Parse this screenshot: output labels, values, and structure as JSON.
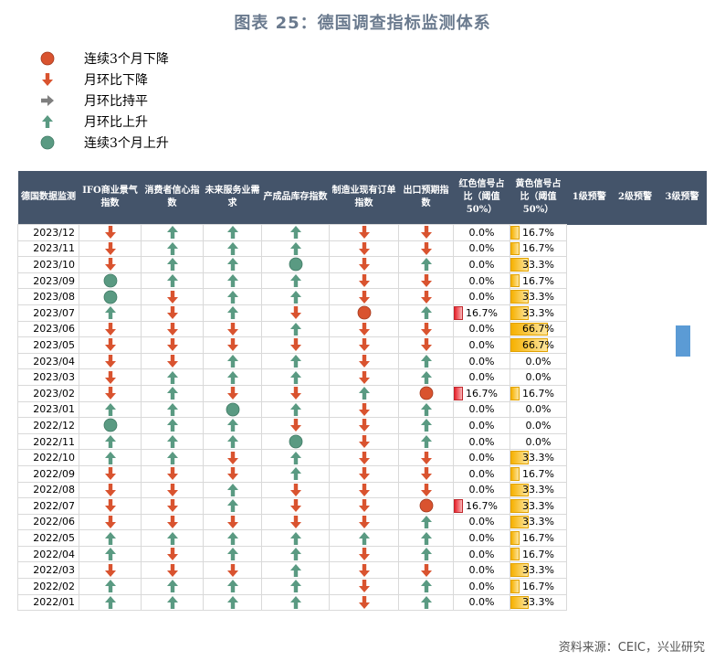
{
  "title": "图表 25：德国调查指标监测体系",
  "source": "资料来源：CEIC，兴业研究",
  "legend": [
    {
      "icon": "circle-red",
      "label": "连续3个月下降"
    },
    {
      "icon": "arrow-down-red",
      "label": "月环比下降"
    },
    {
      "icon": "arrow-right-gray",
      "label": "月环比持平"
    },
    {
      "icon": "arrow-up-green",
      "label": "月环比上升"
    },
    {
      "icon": "circle-green",
      "label": "连续3个月上升"
    }
  ],
  "colors": {
    "red": "#d9532f",
    "green": "#5a9a82",
    "gray": "#7f7f7f",
    "header": "#44546a",
    "bar_red": "#e8212b",
    "bar_yellow": "#f6b100",
    "marker": "#5b9bd5"
  },
  "chart_data": {
    "type": "table",
    "title": "图表 25：德国调查指标监测体系",
    "columns": [
      "德国数据监测",
      "IFO商业景气指数",
      "消费者信心指数",
      "未来服务业需求",
      "产成品库存指数",
      "制造业现有订单指数",
      "出口预期指数",
      "红色信号占比（阈值50%）",
      "黄色信号占比（阈值50%）",
      "1级预警",
      "2级预警",
      "3级预警"
    ],
    "rows": [
      {
        "date": "2023/12",
        "signals": [
          "D",
          "U",
          "U",
          "U",
          "D",
          "D"
        ],
        "red": "0.0%",
        "red_value": 0.0,
        "yellow": "16.7%",
        "yellow_value": 16.7
      },
      {
        "date": "2023/11",
        "signals": [
          "D",
          "U",
          "U",
          "U",
          "D",
          "D"
        ],
        "red": "0.0%",
        "red_value": 0.0,
        "yellow": "16.7%",
        "yellow_value": 16.7
      },
      {
        "date": "2023/10",
        "signals": [
          "D",
          "U",
          "U",
          "CU",
          "D",
          "U"
        ],
        "red": "0.0%",
        "red_value": 0.0,
        "yellow": "33.3%",
        "yellow_value": 33.3
      },
      {
        "date": "2023/09",
        "signals": [
          "CU",
          "U",
          "U",
          "U",
          "D",
          "D"
        ],
        "red": "0.0%",
        "red_value": 0.0,
        "yellow": "16.7%",
        "yellow_value": 16.7
      },
      {
        "date": "2023/08",
        "signals": [
          "CU",
          "D",
          "U",
          "U",
          "D",
          "D"
        ],
        "red": "0.0%",
        "red_value": 0.0,
        "yellow": "33.3%",
        "yellow_value": 33.3
      },
      {
        "date": "2023/07",
        "signals": [
          "U",
          "D",
          "U",
          "D",
          "CD",
          "U"
        ],
        "red": "16.7%",
        "red_value": 16.7,
        "yellow": "33.3%",
        "yellow_value": 33.3
      },
      {
        "date": "2023/06",
        "signals": [
          "D",
          "D",
          "D",
          "U",
          "D",
          "D"
        ],
        "red": "0.0%",
        "red_value": 0.0,
        "yellow": "66.7%",
        "yellow_value": 66.7
      },
      {
        "date": "2023/05",
        "signals": [
          "D",
          "D",
          "D",
          "D",
          "D",
          "D"
        ],
        "red": "0.0%",
        "red_value": 0.0,
        "yellow": "66.7%",
        "yellow_value": 66.7
      },
      {
        "date": "2023/04",
        "signals": [
          "D",
          "D",
          "U",
          "U",
          "D",
          "U"
        ],
        "red": "0.0%",
        "red_value": 0.0,
        "yellow": "0.0%",
        "yellow_value": 0.0
      },
      {
        "date": "2023/03",
        "signals": [
          "D",
          "U",
          "U",
          "U",
          "D",
          "U"
        ],
        "red": "0.0%",
        "red_value": 0.0,
        "yellow": "0.0%",
        "yellow_value": 0.0
      },
      {
        "date": "2023/02",
        "signals": [
          "D",
          "U",
          "D",
          "D",
          "U",
          "CD"
        ],
        "red": "16.7%",
        "red_value": 16.7,
        "yellow": "16.7%",
        "yellow_value": 16.7
      },
      {
        "date": "2023/01",
        "signals": [
          "U",
          "U",
          "CU",
          "U",
          "D",
          "U"
        ],
        "red": "0.0%",
        "red_value": 0.0,
        "yellow": "0.0%",
        "yellow_value": 0.0
      },
      {
        "date": "2022/12",
        "signals": [
          "CU",
          "U",
          "U",
          "D",
          "D",
          "U"
        ],
        "red": "0.0%",
        "red_value": 0.0,
        "yellow": "0.0%",
        "yellow_value": 0.0
      },
      {
        "date": "2022/11",
        "signals": [
          "U",
          "U",
          "U",
          "CU",
          "D",
          "U"
        ],
        "red": "0.0%",
        "red_value": 0.0,
        "yellow": "0.0%",
        "yellow_value": 0.0
      },
      {
        "date": "2022/10",
        "signals": [
          "U",
          "U",
          "D",
          "U",
          "D",
          "D"
        ],
        "red": "0.0%",
        "red_value": 0.0,
        "yellow": "33.3%",
        "yellow_value": 33.3
      },
      {
        "date": "2022/09",
        "signals": [
          "D",
          "D",
          "D",
          "U",
          "D",
          "D"
        ],
        "red": "0.0%",
        "red_value": 0.0,
        "yellow": "16.7%",
        "yellow_value": 16.7
      },
      {
        "date": "2022/08",
        "signals": [
          "D",
          "D",
          "U",
          "D",
          "D",
          "D"
        ],
        "red": "0.0%",
        "red_value": 0.0,
        "yellow": "33.3%",
        "yellow_value": 33.3
      },
      {
        "date": "2022/07",
        "signals": [
          "D",
          "D",
          "U",
          "D",
          "D",
          "CD"
        ],
        "red": "16.7%",
        "red_value": 16.7,
        "yellow": "33.3%",
        "yellow_value": 33.3
      },
      {
        "date": "2022/06",
        "signals": [
          "D",
          "D",
          "D",
          "D",
          "D",
          "U"
        ],
        "red": "0.0%",
        "red_value": 0.0,
        "yellow": "33.3%",
        "yellow_value": 33.3
      },
      {
        "date": "2022/05",
        "signals": [
          "U",
          "U",
          "U",
          "U",
          "U",
          "U"
        ],
        "red": "0.0%",
        "red_value": 0.0,
        "yellow": "16.7%",
        "yellow_value": 16.7
      },
      {
        "date": "2022/04",
        "signals": [
          "U",
          "D",
          "U",
          "U",
          "D",
          "U"
        ],
        "red": "0.0%",
        "red_value": 0.0,
        "yellow": "16.7%",
        "yellow_value": 16.7
      },
      {
        "date": "2022/03",
        "signals": [
          "D",
          "D",
          "D",
          "U",
          "D",
          "D"
        ],
        "red": "0.0%",
        "red_value": 0.0,
        "yellow": "33.3%",
        "yellow_value": 33.3
      },
      {
        "date": "2022/02",
        "signals": [
          "U",
          "U",
          "U",
          "U",
          "D",
          "U"
        ],
        "red": "0.0%",
        "red_value": 0.0,
        "yellow": "16.7%",
        "yellow_value": 16.7
      },
      {
        "date": "2022/01",
        "signals": [
          "U",
          "U",
          "U",
          "U",
          "D",
          "U"
        ],
        "red": "0.0%",
        "red_value": 0.0,
        "yellow": "33.3%",
        "yellow_value": 33.3
      }
    ]
  }
}
